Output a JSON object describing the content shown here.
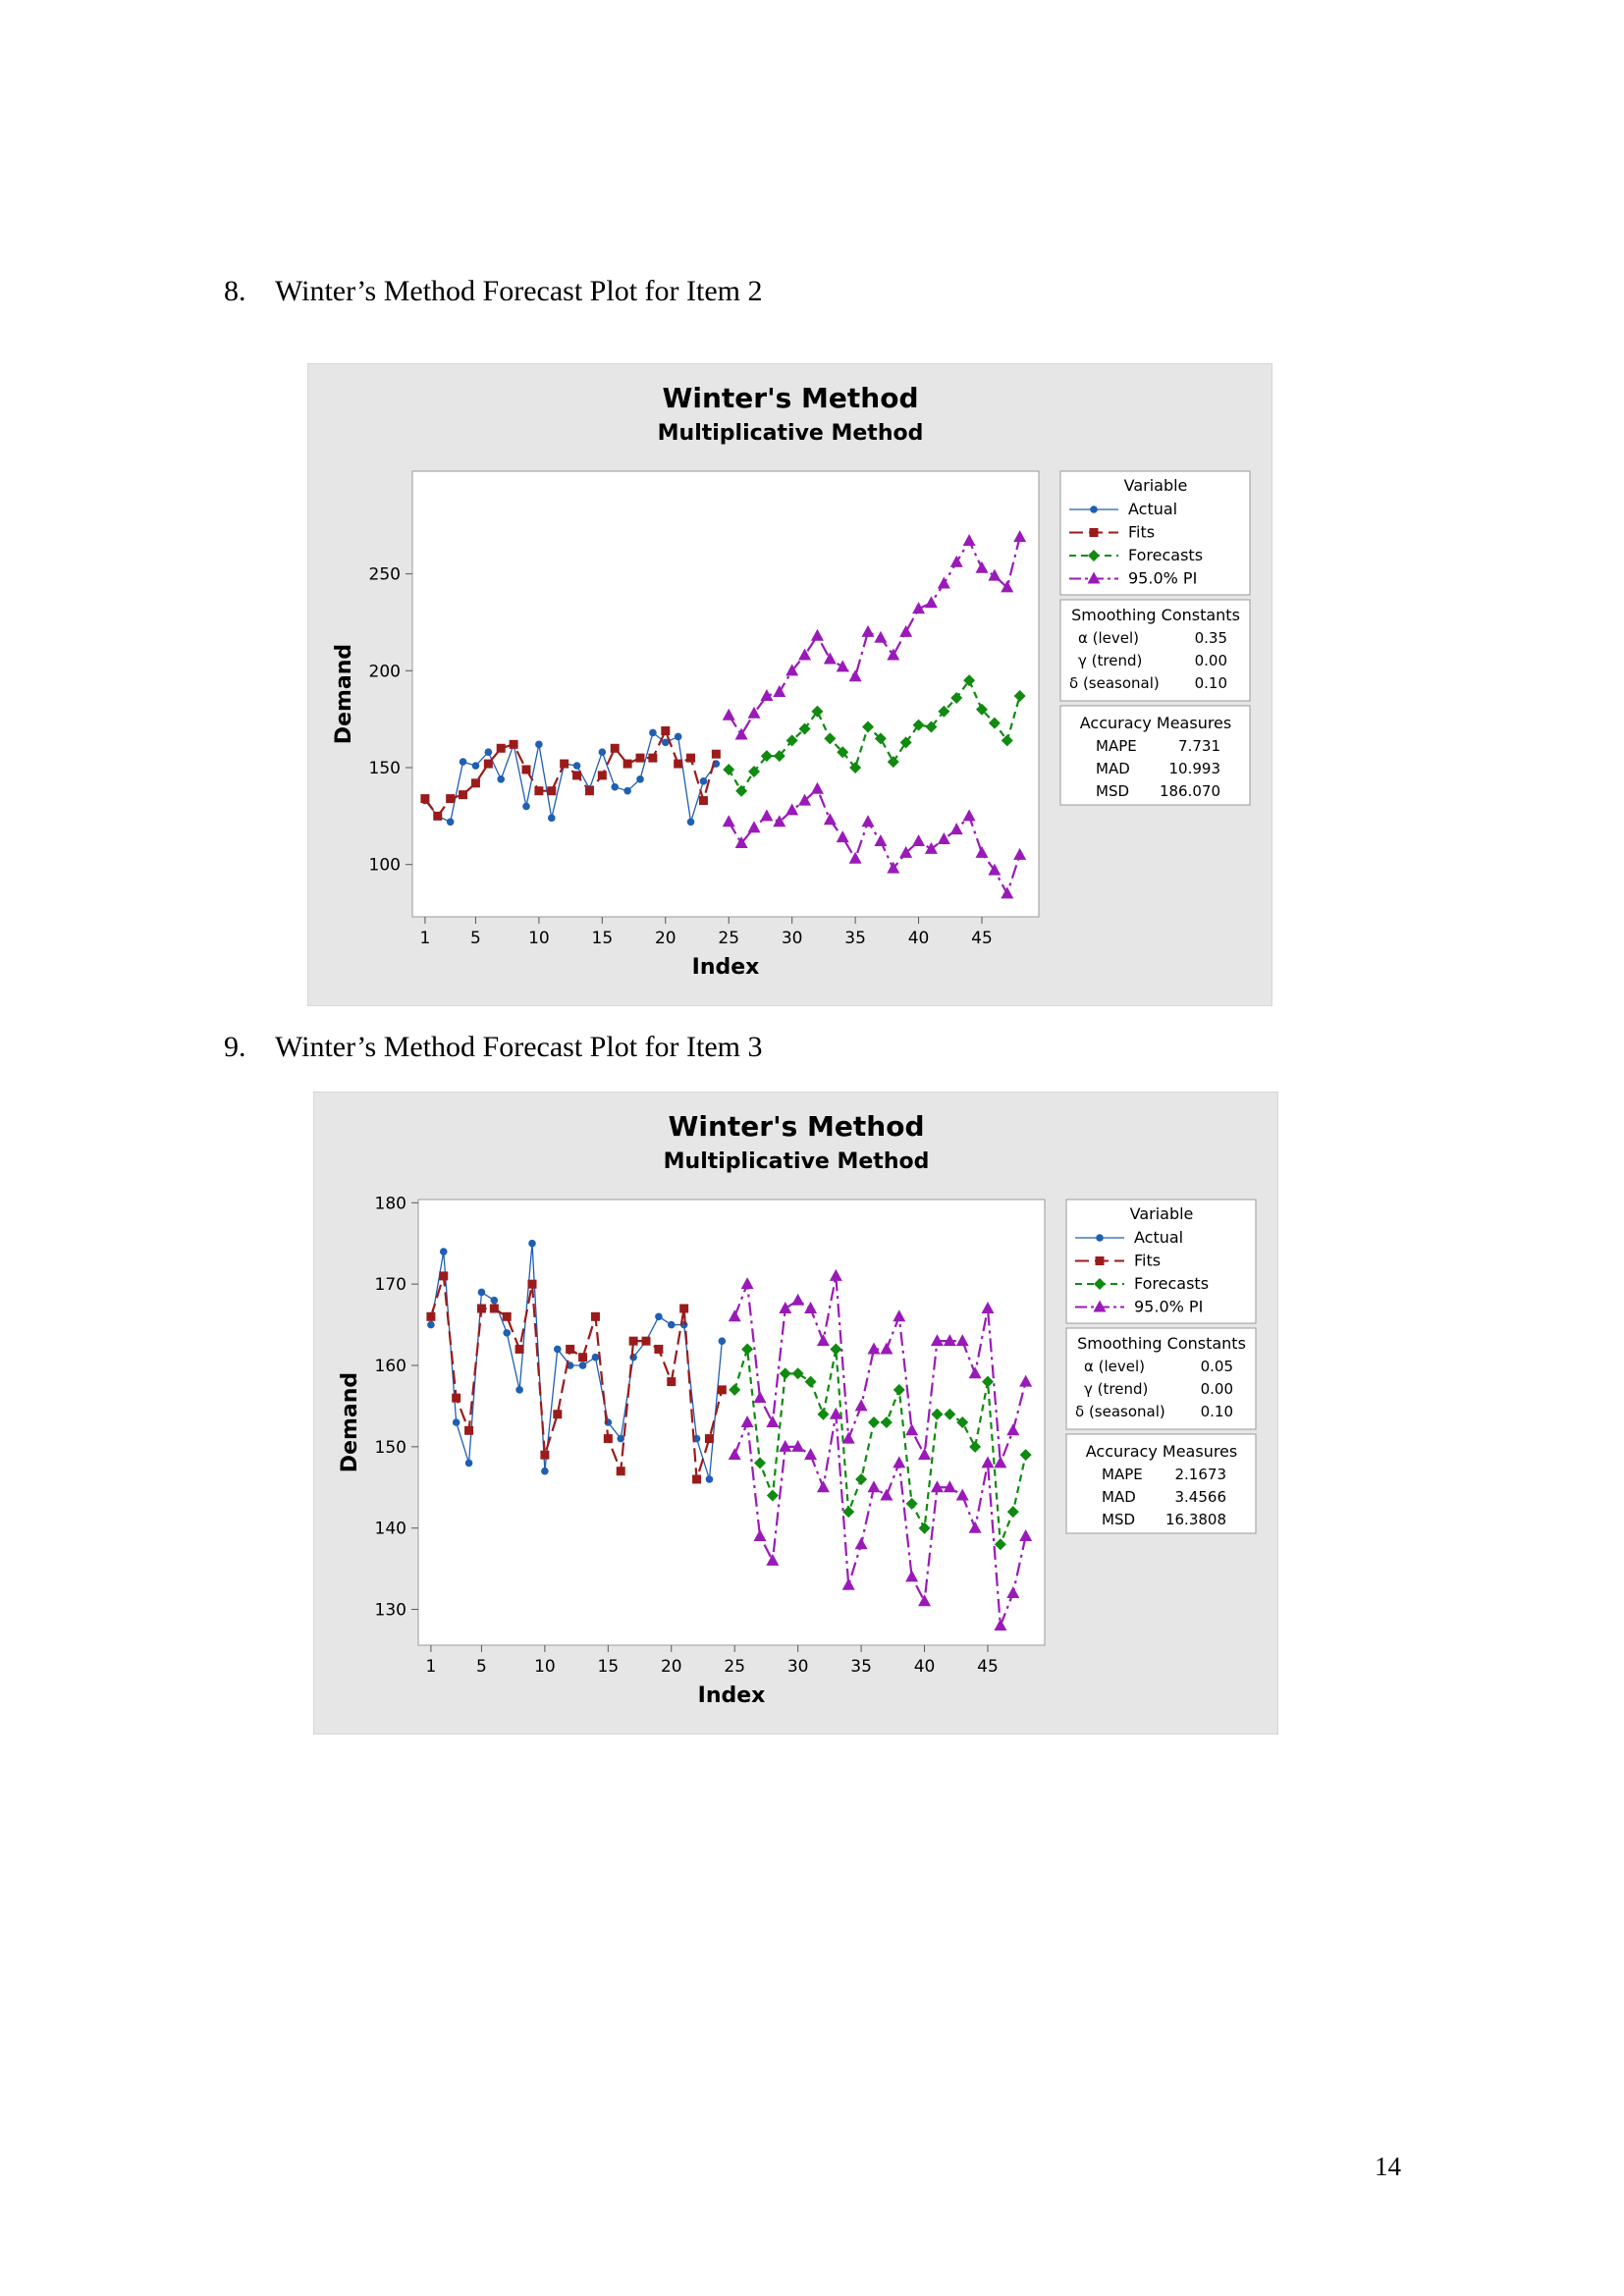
{
  "page_number": "14",
  "sections": [
    {
      "number": "8.",
      "heading": "Winter’s Method Forecast Plot for Item 2",
      "chart_data": {
        "type": "line",
        "title": "Winter's Method",
        "subtitle": "Multiplicative Method",
        "xlabel": "Index",
        "ylabel": "Demand",
        "xticks": [
          1,
          5,
          10,
          15,
          20,
          25,
          30,
          35,
          40,
          45
        ],
        "yticks": [
          100,
          150,
          200,
          250
        ],
        "xlim": [
          0,
          49.5
        ],
        "ylim": [
          73,
          303
        ],
        "grid": false,
        "legend_placement": "right",
        "series": [
          {
            "name": "Actual",
            "color": "#1f5fb4",
            "marker": "circle",
            "dash": "solid",
            "x": [
              1,
              2,
              3,
              4,
              5,
              6,
              7,
              8,
              9,
              10,
              11,
              12,
              13,
              14,
              15,
              16,
              17,
              18,
              19,
              20,
              21,
              22,
              23,
              24
            ],
            "values": [
              133,
              125,
              122,
              153,
              151,
              158,
              144,
              162,
              130,
              162,
              124,
              152,
              151,
              139,
              158,
              140,
              138,
              144,
              168,
              163,
              166,
              122,
              143,
              152
            ]
          },
          {
            "name": "Fits",
            "color": "#9b1b1b",
            "marker": "square",
            "dash": "longdash",
            "x": [
              1,
              2,
              3,
              4,
              5,
              6,
              7,
              8,
              9,
              10,
              11,
              12,
              13,
              14,
              15,
              16,
              17,
              18,
              19,
              20,
              21,
              22,
              23,
              24
            ],
            "values": [
              134,
              125,
              134,
              136,
              142,
              152,
              160,
              162,
              149,
              138,
              138,
              152,
              146,
              138,
              146,
              160,
              152,
              155,
              155,
              169,
              152,
              155,
              133,
              157
            ]
          },
          {
            "name": "Forecasts",
            "color": "#108a10",
            "marker": "diamond",
            "dash": "shortdash",
            "x": [
              25,
              26,
              27,
              28,
              29,
              30,
              31,
              32,
              33,
              34,
              35,
              36,
              37,
              38,
              39,
              40,
              41,
              42,
              43,
              44,
              45,
              46,
              47,
              48
            ],
            "values": [
              149,
              138,
              148,
              156,
              156,
              164,
              170,
              179,
              165,
              158,
              150,
              171,
              165,
              153,
              163,
              172,
              171,
              179,
              186,
              195,
              180,
              173,
              164,
              187
            ]
          },
          {
            "name": "95.0% PI",
            "color": "#9a1ab8",
            "marker": "triangle",
            "dash": "dashdot",
            "x": [
              25,
              26,
              27,
              28,
              29,
              30,
              31,
              32,
              33,
              34,
              35,
              36,
              37,
              38,
              39,
              40,
              41,
              42,
              43,
              44,
              45,
              46,
              47,
              48
            ],
            "values": [
              177,
              167,
              178,
              187,
              189,
              200,
              208,
              218,
              206,
              202,
              197,
              220,
              217,
              208,
              220,
              232,
              235,
              245,
              256,
              267,
              253,
              249,
              243,
              269
            ]
          },
          {
            "name": "95.0% PI lower",
            "color": "#9a1ab8",
            "marker": "triangle",
            "dash": "dashdot",
            "x": [
              25,
              26,
              27,
              28,
              29,
              30,
              31,
              32,
              33,
              34,
              35,
              36,
              37,
              38,
              39,
              40,
              41,
              42,
              43,
              44,
              45,
              46,
              47,
              48
            ],
            "values": [
              122,
              111,
              119,
              125,
              122,
              128,
              133,
              139,
              123,
              114,
              103,
              122,
              112,
              98,
              106,
              112,
              108,
              113,
              118,
              125,
              106,
              97,
              85,
              105
            ]
          }
        ],
        "legend": {
          "title": "Variable",
          "items": [
            "Actual",
            "Fits",
            "Forecasts",
            "95.0% PI"
          ]
        },
        "smoothing_constants": {
          "title": "Smoothing Constants",
          "rows": [
            {
              "label": "α (level)",
              "value": "0.35"
            },
            {
              "label": "γ (trend)",
              "value": "0.00"
            },
            {
              "label": "δ (seasonal)",
              "value": "0.10"
            }
          ]
        },
        "accuracy_measures": {
          "title": "Accuracy Measures",
          "rows": [
            {
              "label": "MAPE",
              "value": "7.731"
            },
            {
              "label": "MAD",
              "value": "10.993"
            },
            {
              "label": "MSD",
              "value": "186.070"
            }
          ]
        }
      }
    },
    {
      "number": "9.",
      "heading": "Winter’s Method Forecast Plot for Item 3",
      "chart_data": {
        "type": "line",
        "title": "Winter's Method",
        "subtitle": "Multiplicative Method",
        "xlabel": "Index",
        "ylabel": "Demand",
        "xticks": [
          1,
          5,
          10,
          15,
          20,
          25,
          30,
          35,
          40,
          45
        ],
        "yticks": [
          130,
          140,
          150,
          160,
          170,
          180
        ],
        "xlim": [
          0,
          49.5
        ],
        "ylim": [
          125.6,
          180.4
        ],
        "grid": false,
        "legend_placement": "right",
        "series": [
          {
            "name": "Actual",
            "color": "#1f5fb4",
            "marker": "circle",
            "dash": "solid",
            "x": [
              1,
              2,
              3,
              4,
              5,
              6,
              7,
              8,
              9,
              10,
              11,
              12,
              13,
              14,
              15,
              16,
              17,
              18,
              19,
              20,
              21,
              22,
              23,
              24
            ],
            "values": [
              165,
              174,
              153,
              148,
              169,
              168,
              164,
              157,
              175,
              147,
              162,
              160,
              160,
              161,
              153,
              151,
              161,
              163,
              166,
              165,
              165,
              151,
              146,
              163
            ]
          },
          {
            "name": "Fits",
            "color": "#9b1b1b",
            "marker": "square",
            "dash": "longdash",
            "x": [
              1,
              2,
              3,
              4,
              5,
              6,
              7,
              8,
              9,
              10,
              11,
              12,
              13,
              14,
              15,
              16,
              17,
              18,
              19,
              20,
              21,
              22,
              23,
              24
            ],
            "values": [
              166,
              171,
              156,
              152,
              167,
              167,
              166,
              162,
              170,
              149,
              154,
              162,
              161,
              166,
              151,
              147,
              163,
              163,
              162,
              158,
              167,
              146,
              151,
              157
            ]
          },
          {
            "name": "Forecasts",
            "color": "#108a10",
            "marker": "diamond",
            "dash": "shortdash",
            "x": [
              25,
              26,
              27,
              28,
              29,
              30,
              31,
              32,
              33,
              34,
              35,
              36,
              37,
              38,
              39,
              40,
              41,
              42,
              43,
              44,
              45,
              46,
              47,
              48
            ],
            "values": [
              157,
              162,
              148,
              144,
              159,
              159,
              158,
              154,
              162,
              142,
              146,
              153,
              153,
              157,
              143,
              140,
              154,
              154,
              153,
              150,
              158,
              138,
              142,
              149
            ]
          },
          {
            "name": "95.0% PI",
            "color": "#9a1ab8",
            "marker": "triangle",
            "dash": "dashdot",
            "x": [
              25,
              26,
              27,
              28,
              29,
              30,
              31,
              32,
              33,
              34,
              35,
              36,
              37,
              38,
              39,
              40,
              41,
              42,
              43,
              44,
              45,
              46,
              47,
              48
            ],
            "values": [
              166,
              170,
              156,
              153,
              167,
              168,
              167,
              163,
              171,
              151,
              155,
              162,
              162,
              166,
              152,
              149,
              163,
              163,
              163,
              159,
              167,
              148,
              152,
              158
            ]
          },
          {
            "name": "95.0% PI lower",
            "color": "#9a1ab8",
            "marker": "triangle",
            "dash": "dashdot",
            "x": [
              25,
              26,
              27,
              28,
              29,
              30,
              31,
              32,
              33,
              34,
              35,
              36,
              37,
              38,
              39,
              40,
              41,
              42,
              43,
              44,
              45,
              46,
              47,
              48
            ],
            "values": [
              149,
              153,
              139,
              136,
              150,
              150,
              149,
              145,
              154,
              133,
              138,
              145,
              144,
              148,
              134,
              131,
              145,
              145,
              144,
              140,
              148,
              128,
              132,
              139
            ]
          }
        ],
        "legend": {
          "title": "Variable",
          "items": [
            "Actual",
            "Fits",
            "Forecasts",
            "95.0% PI"
          ]
        },
        "smoothing_constants": {
          "title": "Smoothing Constants",
          "rows": [
            {
              "label": "α (level)",
              "value": "0.05"
            },
            {
              "label": "γ (trend)",
              "value": "0.00"
            },
            {
              "label": "δ (seasonal)",
              "value": "0.10"
            }
          ]
        },
        "accuracy_measures": {
          "title": "Accuracy Measures",
          "rows": [
            {
              "label": "MAPE",
              "value": "2.1673"
            },
            {
              "label": "MAD",
              "value": "3.4566"
            },
            {
              "label": "MSD",
              "value": "16.3808"
            }
          ]
        }
      }
    }
  ]
}
